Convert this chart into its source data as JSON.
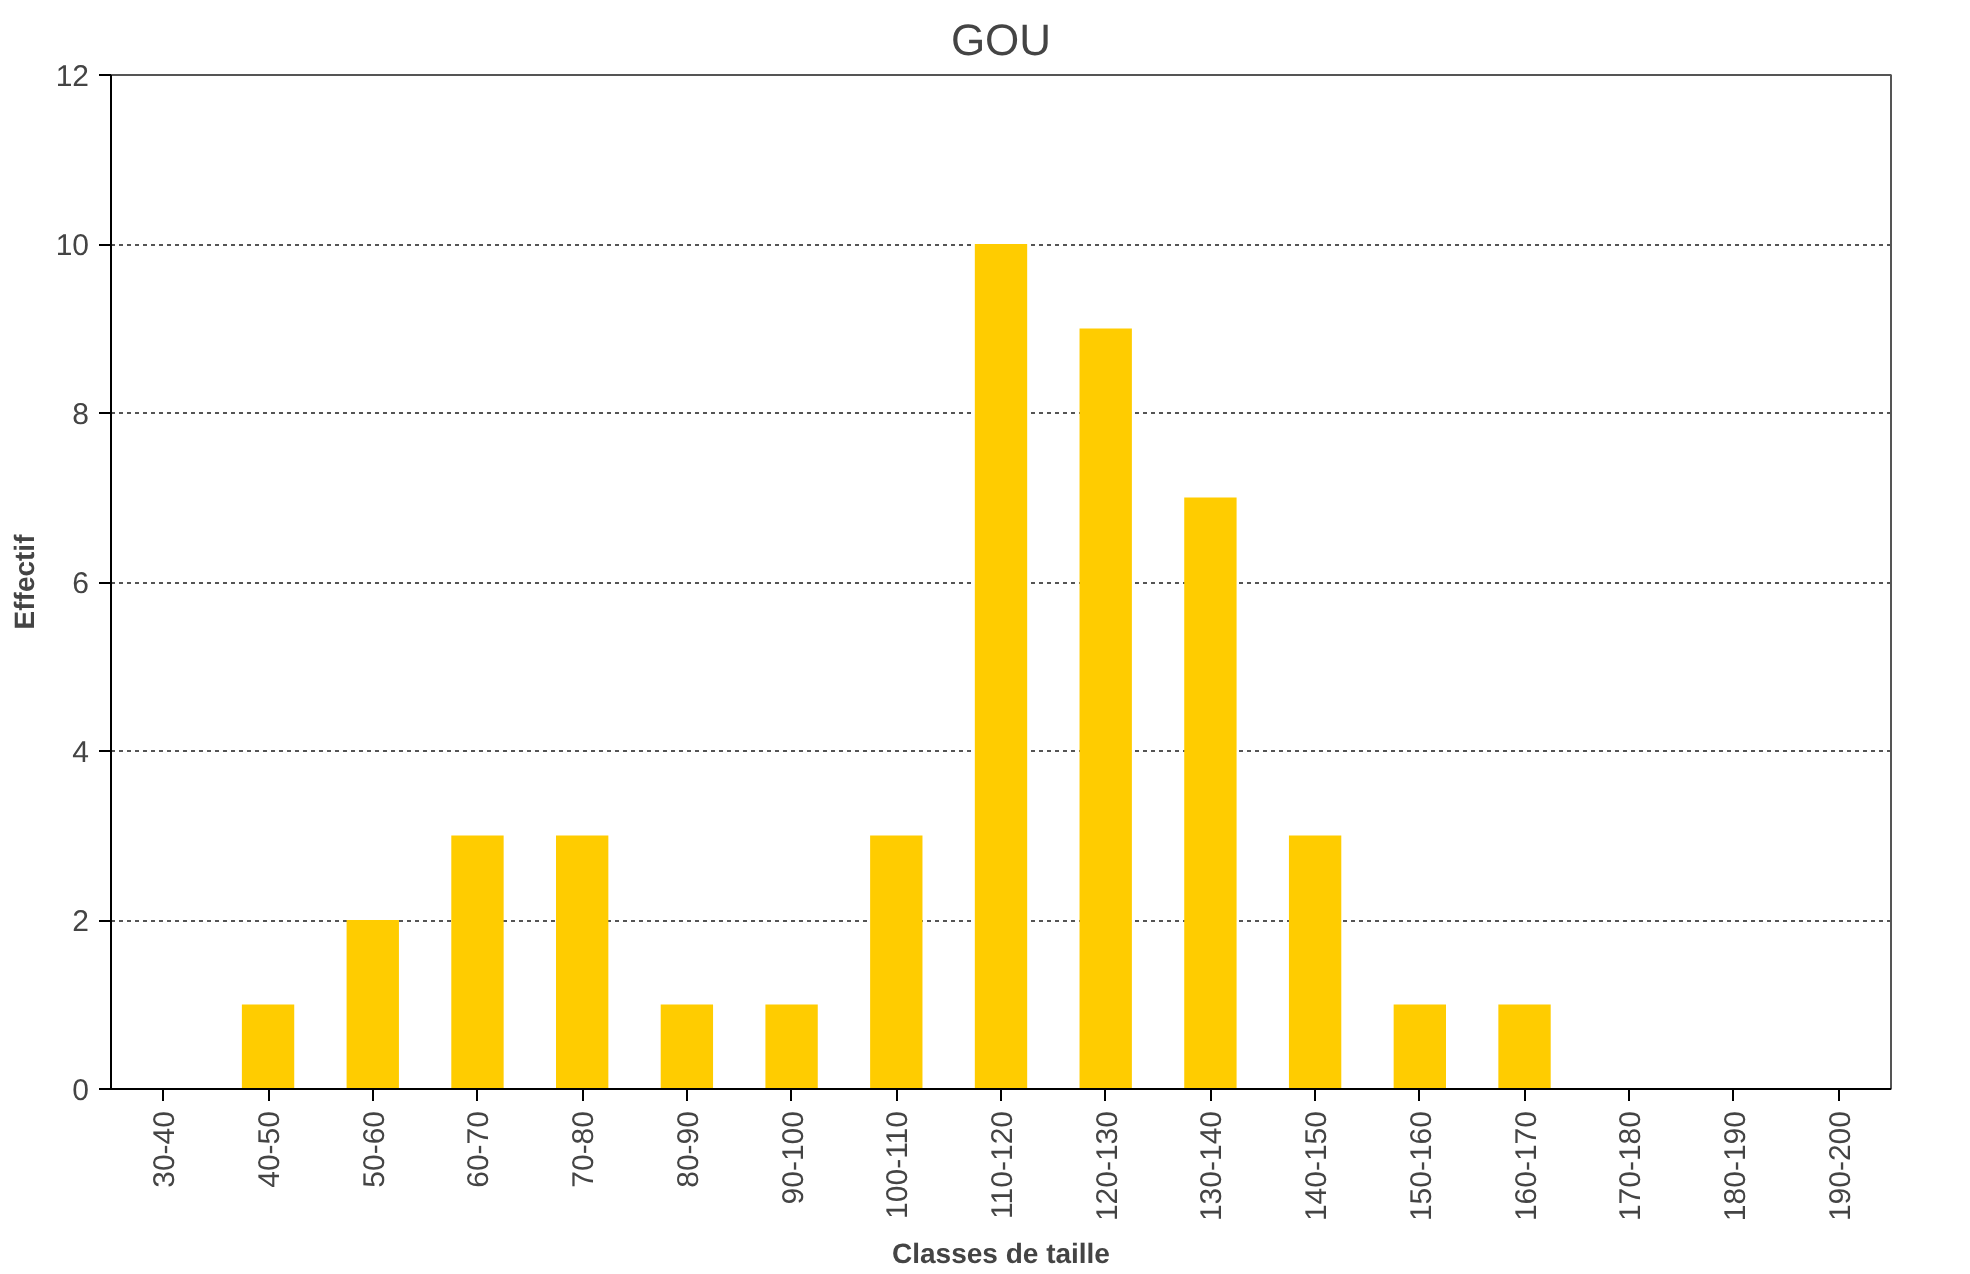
{
  "chart_data": {
    "type": "bar",
    "title": "GOU",
    "xlabel": "Classes de taille",
    "ylabel": "Effectif",
    "categories": [
      "30-40",
      "40-50",
      "50-60",
      "60-70",
      "70-80",
      "80-90",
      "90-100",
      "100-110",
      "110-120",
      "120-130",
      "130-140",
      "140-150",
      "150-160",
      "160-170",
      "170-180",
      "180-190",
      "190-200"
    ],
    "values": [
      0,
      1,
      2,
      3,
      3,
      1,
      1,
      3,
      10,
      9,
      7,
      3,
      1,
      1,
      0,
      0,
      0
    ],
    "color": "#ffcc00",
    "ylim": [
      0,
      12
    ],
    "yticks": [
      0,
      2,
      4,
      6,
      8,
      10,
      12
    ],
    "grid": "y"
  }
}
